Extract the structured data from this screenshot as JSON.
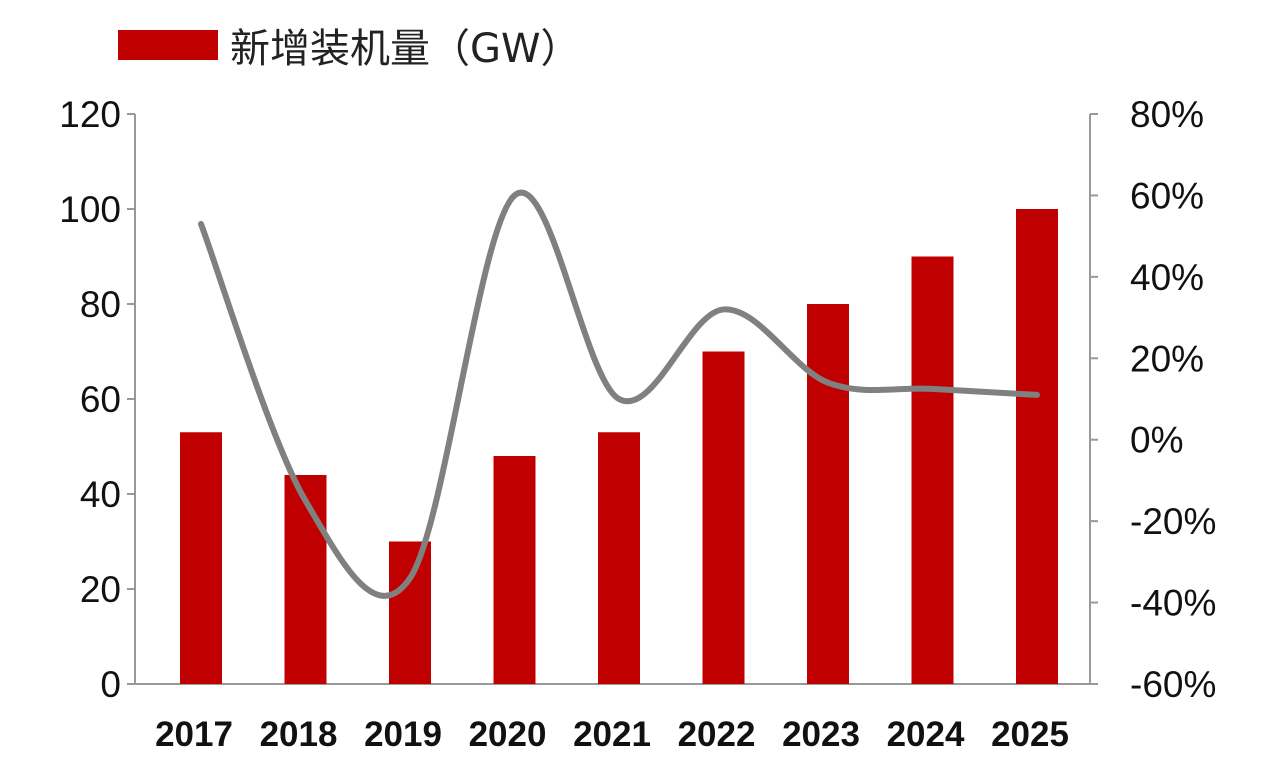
{
  "chart_data": {
    "type": "bar+line",
    "categories": [
      "2017",
      "2018",
      "2019",
      "2020",
      "2021",
      "2022",
      "2023",
      "2024",
      "2025"
    ],
    "series": [
      {
        "name": "新增装机量（GW）",
        "type": "bar",
        "axis": "left",
        "color": "#c00000",
        "values": [
          53,
          44,
          30,
          48,
          53,
          70,
          80,
          90,
          100
        ]
      },
      {
        "type": "line",
        "axis": "right",
        "color": "#808080",
        "values": [
          53,
          -15,
          -34,
          60,
          10,
          32,
          14,
          12.5,
          11
        ]
      }
    ],
    "y_left": {
      "min": 0,
      "max": 120,
      "ticks": [
        "0",
        "20",
        "40",
        "60",
        "80",
        "100",
        "120"
      ]
    },
    "y_right": {
      "min": -60,
      "max": 80,
      "ticks": [
        "-60%",
        "-40%",
        "-20%",
        "0%",
        "20%",
        "40%",
        "60%",
        "80%"
      ]
    },
    "legend": {
      "position": "top-left",
      "label": "新增装机量（GW）"
    },
    "grid": false
  }
}
